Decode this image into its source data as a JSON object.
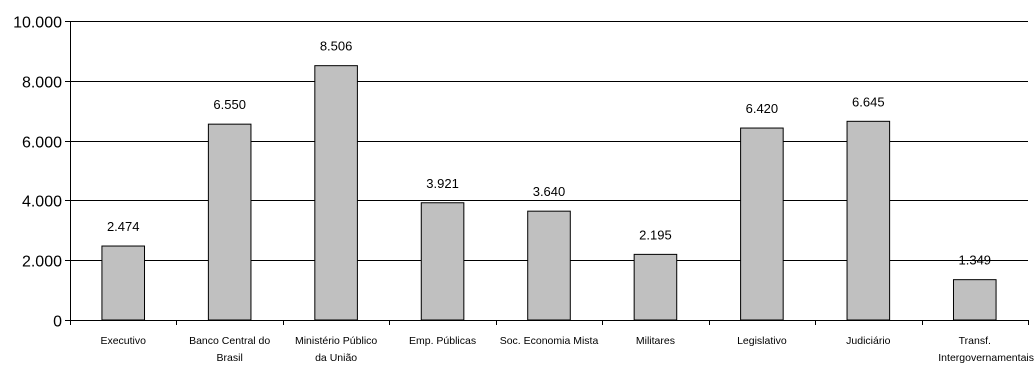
{
  "chart_data": {
    "type": "bar",
    "categories": [
      [
        "Executivo"
      ],
      [
        "Banco Central do",
        "Brasil"
      ],
      [
        "Ministério Público",
        "da União"
      ],
      [
        "Emp. Públicas"
      ],
      [
        "Soc. Economia Mista"
      ],
      [
        "Militares"
      ],
      [
        "Legislativo"
      ],
      [
        "Judiciário"
      ],
      [
        "Transf.",
        "Intergovernamentais"
      ]
    ],
    "values": [
      2474,
      6550,
      8506,
      3921,
      3640,
      2195,
      6420,
      6645,
      1349
    ],
    "data_labels": [
      "2.474",
      "6.550",
      "8.506",
      "3.921",
      "3.640",
      "2.195",
      "6.420",
      "6.645",
      "1.349"
    ],
    "yticks": [
      0,
      2000,
      4000,
      6000,
      8000,
      10000
    ],
    "ytick_labels": [
      "0",
      "2.000",
      "4.000",
      "6.000",
      "8.000",
      "10.000"
    ],
    "ylim": [
      0,
      10000
    ],
    "grid": true,
    "legend": "none",
    "title": "",
    "xlabel": "",
    "ylabel": "",
    "bar_color": "#c0c0c0",
    "edge_color": "#000000"
  }
}
